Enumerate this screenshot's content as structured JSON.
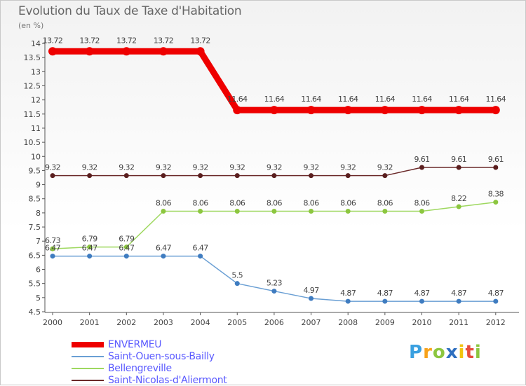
{
  "title": "Evolution du Taux de Taxe d'Habitation",
  "unit_label": "(en %)",
  "brand": {
    "letters": [
      "P",
      "r",
      "o",
      "x",
      "i",
      "t",
      "i"
    ],
    "colors": [
      "#3aa0e0",
      "#f7a21a",
      "#8cc63f",
      "#2e6fbf",
      "#f1c40f",
      "#e74c3c",
      "#8cc63f"
    ]
  },
  "chart_data": {
    "type": "line",
    "x": [
      "2000",
      "2001",
      "2002",
      "2003",
      "2004",
      "2005",
      "2006",
      "2007",
      "2008",
      "2009",
      "2010",
      "2011",
      "2012"
    ],
    "ylim": [
      4.5,
      14
    ],
    "yticks": [
      "4.5",
      "5",
      "5.5",
      "6",
      "6.5",
      "7",
      "7.5",
      "8",
      "8.5",
      "9",
      "9.5",
      "10",
      "10.5",
      "11",
      "11.5",
      "12",
      "12.5",
      "13",
      "13.5",
      "14"
    ],
    "grid": false,
    "legend_position": "bottom-left",
    "series": [
      {
        "name": "ENVERMEU",
        "color": "#ee0000",
        "width": 9,
        "marker": 6,
        "values": [
          13.72,
          13.72,
          13.72,
          13.72,
          13.72,
          11.64,
          11.64,
          11.64,
          11.64,
          11.64,
          11.64,
          11.64,
          11.64
        ],
        "labels": [
          "13.72",
          "13.72",
          "13.72",
          "13.72",
          "13.72",
          "11.64",
          "11.64",
          "11.64",
          "11.64",
          "11.64",
          "11.64",
          "11.64",
          "11.64"
        ]
      },
      {
        "name": "Saint-Ouen-sous-Bailly",
        "color": "#6a9fd4",
        "marker_color": "#3f7cc0",
        "width": 1.5,
        "marker": 3.5,
        "values": [
          6.47,
          6.47,
          6.47,
          6.47,
          6.47,
          5.5,
          5.23,
          4.97,
          4.87,
          4.87,
          4.87,
          4.87,
          4.87
        ],
        "labels": [
          "6.47",
          "6.47",
          "6.47",
          "6.47",
          "6.47",
          "5.5",
          "5.23",
          "4.97",
          "4.87",
          "4.87",
          "4.87",
          "4.87",
          "4.87"
        ]
      },
      {
        "name": "Bellengreville",
        "color": "#9ed85f",
        "marker_color": "#8cc63f",
        "width": 1.5,
        "marker": 3.5,
        "values": [
          6.73,
          6.79,
          6.79,
          8.06,
          8.06,
          8.06,
          8.06,
          8.06,
          8.06,
          8.06,
          8.06,
          8.22,
          8.38
        ],
        "labels": [
          "6.73",
          "6.79",
          "6.79",
          "8.06",
          "8.06",
          "8.06",
          "8.06",
          "8.06",
          "8.06",
          "8.06",
          "8.06",
          "8.22",
          "8.38"
        ]
      },
      {
        "name": "Saint-Nicolas-d'Aliermont",
        "color": "#6b2a2a",
        "marker_color": "#5a1e1e",
        "width": 1.5,
        "marker": 3.5,
        "values": [
          9.32,
          9.32,
          9.32,
          9.32,
          9.32,
          9.32,
          9.32,
          9.32,
          9.32,
          9.32,
          9.61,
          9.61,
          9.61
        ],
        "labels": [
          "9.32",
          "9.32",
          "9.32",
          "9.32",
          "9.32",
          "9.32",
          "9.32",
          "9.32",
          "9.32",
          "9.32",
          "9.61",
          "9.61",
          "9.61"
        ]
      }
    ]
  }
}
